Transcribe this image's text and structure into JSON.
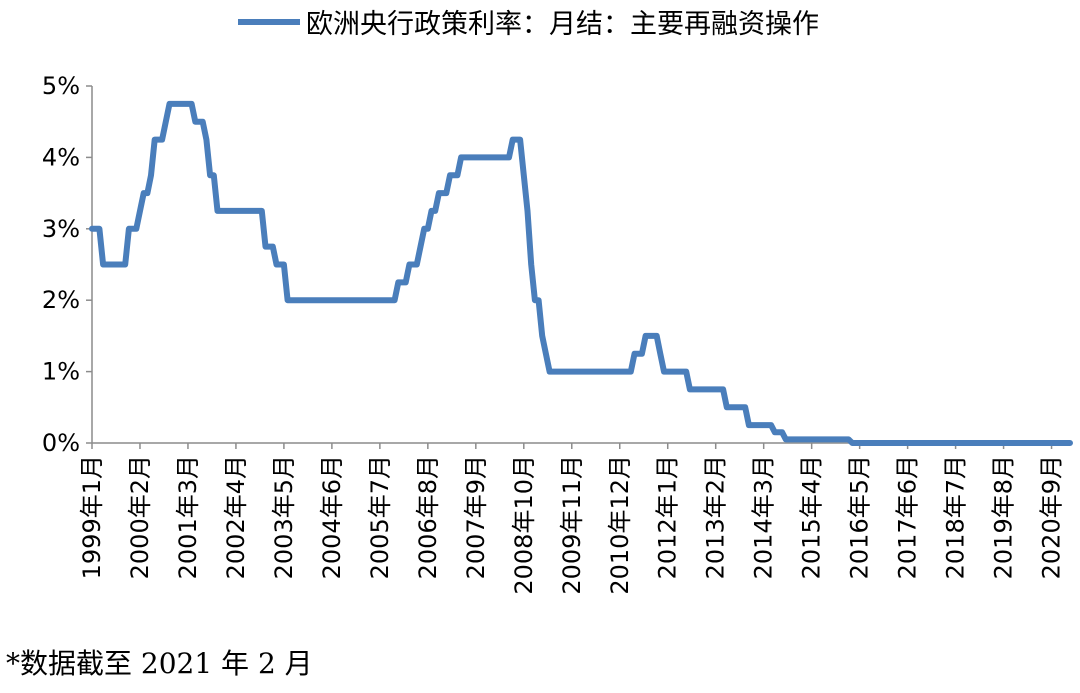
{
  "chart_data": {
    "type": "line",
    "legend": {
      "label": "欧洲央行政策利率：月结：主要再融资操作",
      "position": "top"
    },
    "series": [
      {
        "name": "欧洲央行政策利率：月结：主要再融资操作",
        "color": "#4a7ebb",
        "unit": "%",
        "points": [
          {
            "x": "1999-01",
            "y": 3.0
          },
          {
            "x": "1999-03",
            "y": 3.0
          },
          {
            "x": "1999-04",
            "y": 2.5
          },
          {
            "x": "1999-10",
            "y": 2.5
          },
          {
            "x": "1999-11",
            "y": 3.0
          },
          {
            "x": "2000-01",
            "y": 3.0
          },
          {
            "x": "2000-02",
            "y": 3.25
          },
          {
            "x": "2000-03",
            "y": 3.5
          },
          {
            "x": "2000-04",
            "y": 3.5
          },
          {
            "x": "2000-05",
            "y": 3.75
          },
          {
            "x": "2000-06",
            "y": 4.25
          },
          {
            "x": "2000-08",
            "y": 4.25
          },
          {
            "x": "2000-09",
            "y": 4.5
          },
          {
            "x": "2000-10",
            "y": 4.75
          },
          {
            "x": "2001-04",
            "y": 4.75
          },
          {
            "x": "2001-05",
            "y": 4.5
          },
          {
            "x": "2001-07",
            "y": 4.5
          },
          {
            "x": "2001-08",
            "y": 4.25
          },
          {
            "x": "2001-09",
            "y": 3.75
          },
          {
            "x": "2001-10",
            "y": 3.75
          },
          {
            "x": "2001-11",
            "y": 3.25
          },
          {
            "x": "2002-11",
            "y": 3.25
          },
          {
            "x": "2002-12",
            "y": 2.75
          },
          {
            "x": "2003-02",
            "y": 2.75
          },
          {
            "x": "2003-03",
            "y": 2.5
          },
          {
            "x": "2003-05",
            "y": 2.5
          },
          {
            "x": "2003-06",
            "y": 2.0
          },
          {
            "x": "2005-11",
            "y": 2.0
          },
          {
            "x": "2005-12",
            "y": 2.25
          },
          {
            "x": "2006-02",
            "y": 2.25
          },
          {
            "x": "2006-03",
            "y": 2.5
          },
          {
            "x": "2006-05",
            "y": 2.5
          },
          {
            "x": "2006-06",
            "y": 2.75
          },
          {
            "x": "2006-07",
            "y": 3.0
          },
          {
            "x": "2006-08",
            "y": 3.0
          },
          {
            "x": "2006-09",
            "y": 3.25
          },
          {
            "x": "2006-10",
            "y": 3.25
          },
          {
            "x": "2006-11",
            "y": 3.5
          },
          {
            "x": "2007-01",
            "y": 3.5
          },
          {
            "x": "2007-02",
            "y": 3.75
          },
          {
            "x": "2007-04",
            "y": 3.75
          },
          {
            "x": "2007-05",
            "y": 4.0
          },
          {
            "x": "2008-06",
            "y": 4.0
          },
          {
            "x": "2008-07",
            "y": 4.25
          },
          {
            "x": "2008-09",
            "y": 4.25
          },
          {
            "x": "2008-10",
            "y": 3.75
          },
          {
            "x": "2008-11",
            "y": 3.25
          },
          {
            "x": "2008-12",
            "y": 2.5
          },
          {
            "x": "2009-01",
            "y": 2.0
          },
          {
            "x": "2009-02",
            "y": 2.0
          },
          {
            "x": "2009-03",
            "y": 1.5
          },
          {
            "x": "2009-04",
            "y": 1.25
          },
          {
            "x": "2009-05",
            "y": 1.0
          },
          {
            "x": "2011-03",
            "y": 1.0
          },
          {
            "x": "2011-04",
            "y": 1.25
          },
          {
            "x": "2011-06",
            "y": 1.25
          },
          {
            "x": "2011-07",
            "y": 1.5
          },
          {
            "x": "2011-10",
            "y": 1.5
          },
          {
            "x": "2011-11",
            "y": 1.25
          },
          {
            "x": "2011-12",
            "y": 1.0
          },
          {
            "x": "2012-06",
            "y": 1.0
          },
          {
            "x": "2012-07",
            "y": 0.75
          },
          {
            "x": "2013-04",
            "y": 0.75
          },
          {
            "x": "2013-05",
            "y": 0.5
          },
          {
            "x": "2013-10",
            "y": 0.5
          },
          {
            "x": "2013-11",
            "y": 0.25
          },
          {
            "x": "2014-05",
            "y": 0.25
          },
          {
            "x": "2014-06",
            "y": 0.15
          },
          {
            "x": "2014-08",
            "y": 0.15
          },
          {
            "x": "2014-09",
            "y": 0.05
          },
          {
            "x": "2016-02",
            "y": 0.05
          },
          {
            "x": "2016-03",
            "y": 0.0
          },
          {
            "x": "2021-02",
            "y": 0.0
          }
        ]
      }
    ],
    "x_range": [
      "1999-01",
      "2021-02"
    ],
    "x_tick_labels": [
      {
        "x": "1999-01",
        "label": "1999年1月"
      },
      {
        "x": "2000-02",
        "label": "2000年2月"
      },
      {
        "x": "2001-03",
        "label": "2001年3月"
      },
      {
        "x": "2002-04",
        "label": "2002年4月"
      },
      {
        "x": "2003-05",
        "label": "2003年5月"
      },
      {
        "x": "2004-06",
        "label": "2004年6月"
      },
      {
        "x": "2005-07",
        "label": "2005年7月"
      },
      {
        "x": "2006-08",
        "label": "2006年8月"
      },
      {
        "x": "2007-09",
        "label": "2007年9月"
      },
      {
        "x": "2008-10",
        "label": "2008年10月"
      },
      {
        "x": "2009-11",
        "label": "2009年11月"
      },
      {
        "x": "2010-12",
        "label": "2010年12月"
      },
      {
        "x": "2012-01",
        "label": "2012年1月"
      },
      {
        "x": "2013-02",
        "label": "2013年2月"
      },
      {
        "x": "2014-03",
        "label": "2014年3月"
      },
      {
        "x": "2015-04",
        "label": "2015年4月"
      },
      {
        "x": "2016-05",
        "label": "2016年5月"
      },
      {
        "x": "2017-06",
        "label": "2017年6月"
      },
      {
        "x": "2018-07",
        "label": "2018年7月"
      },
      {
        "x": "2019-08",
        "label": "2019年8月"
      },
      {
        "x": "2020-09",
        "label": "2020年9月"
      }
    ],
    "y_ticks": [
      {
        "value": 0,
        "label": "0%"
      },
      {
        "value": 1,
        "label": "1%"
      },
      {
        "value": 2,
        "label": "2%"
      },
      {
        "value": 3,
        "label": "3%"
      },
      {
        "value": 4,
        "label": "4%"
      },
      {
        "value": 5,
        "label": "5%"
      }
    ],
    "ylim": [
      0,
      5
    ],
    "grid": false
  },
  "footnote": "*数据截至 2021 年 2 月"
}
